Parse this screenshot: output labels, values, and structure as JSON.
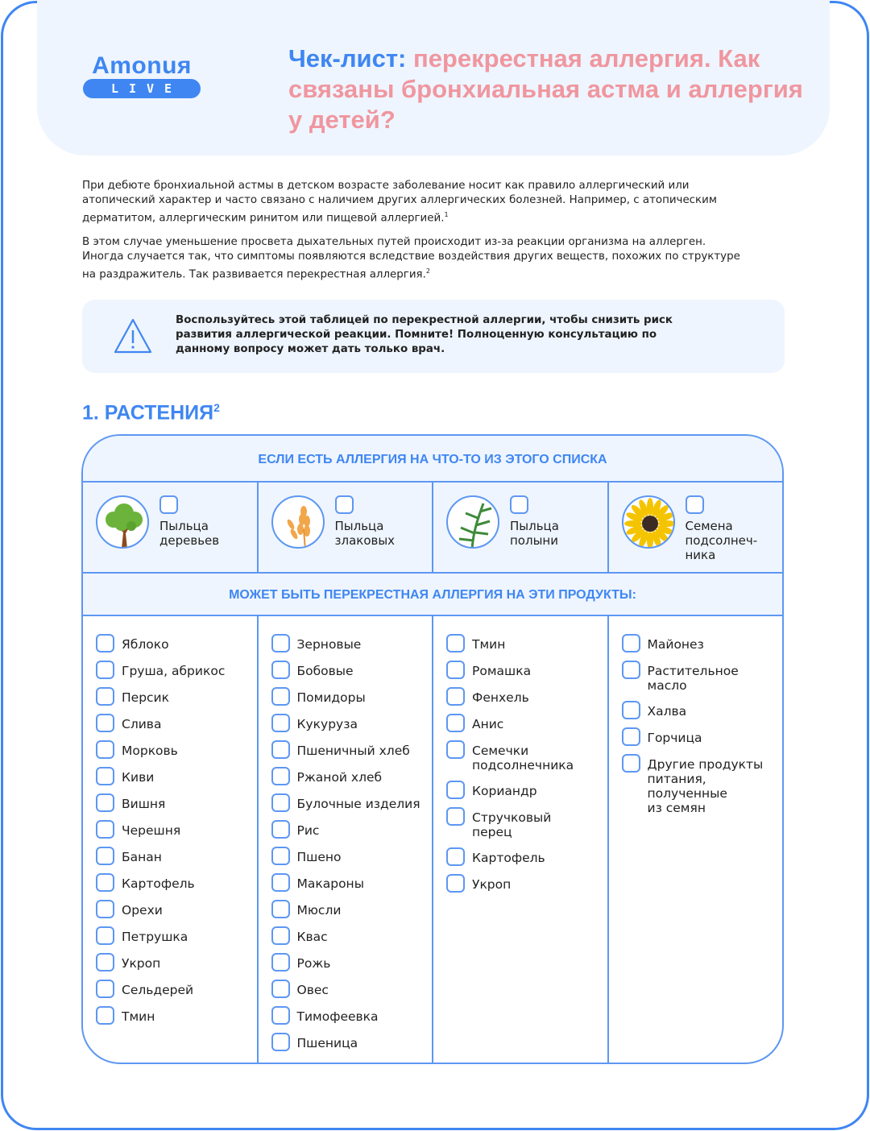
{
  "logo": {
    "name": "Amonuя",
    "sub": "LIVE"
  },
  "title": {
    "lead": "Чек-лист:",
    "rest": " перекрестная аллергия. Как связаны бронхиальная астма и аллергия у детей?"
  },
  "intro": [
    {
      "text": "При дебюте бронхиальной астмы в детском возрасте заболевание носит как правило аллергический или атопический характер и часто связано с наличием других аллергических болезней. Например, с атопическим дерматитом, аллергическим ринитом или пищевой аллергией.",
      "ref": "1"
    },
    {
      "text": "В этом случае уменьшение просвета дыхательных путей происходит из-за реакции организма на аллерген. Иногда случается так, что симптомы появляются вследствие воздействия других веществ, похожих по структуре на раздражитель. Так развивается перекрестная аллергия.",
      "ref": "2"
    }
  ],
  "note": {
    "icon": "warning-triangle-icon",
    "text": "Воспользуйтесь этой таблицей по перекрестной аллергии, чтобы снизить риск развития аллергической реакции. Помните! Полноценную консультацию по данному вопросу может дать только врач."
  },
  "section": {
    "title": "1. РАСТЕНИЯ",
    "ref": "2"
  },
  "table": {
    "header1": "ЕСЛИ ЕСТЬ АЛЛЕРГИЯ НА ЧТО-ТО ИЗ ЭТОГО СПИСКА",
    "categories": [
      {
        "label": "Пыльца\nдеревьев",
        "icon": "tree-icon"
      },
      {
        "label": "Пыльца\nзлаковых",
        "icon": "wheat-icon"
      },
      {
        "label": "Пыльца\nполыни",
        "icon": "wormwood-icon"
      },
      {
        "label": "Семена\nподсолнеч-\nника",
        "icon": "sunflower-icon"
      }
    ],
    "header2": "МОЖЕТ БЫТЬ ПЕРЕКРЕСТНАЯ АЛЛЕРГИЯ НА ЭТИ ПРОДУКТЫ:",
    "columns": [
      [
        "Яблоко",
        "Груша, абрикос",
        "Персик",
        "Слива",
        "Морковь",
        "Киви",
        "Вишня",
        "Черешня",
        "Банан",
        "Картофель",
        "Орехи",
        "Петрушка",
        "Укроп",
        "Сельдерей",
        "Тмин"
      ],
      [
        "Зерновые",
        "Бобовые",
        "Помидоры",
        "Кукуруза",
        "Пшеничный хлеб",
        "Ржаной хлеб",
        "Булочные изделия",
        "Рис",
        "Пшено",
        "Макароны",
        "Мюсли",
        "Квас",
        "Рожь",
        "Овес",
        "Тимофеевка",
        "Пшеница"
      ],
      [
        "Тмин",
        "Ромашка",
        "Фенхель",
        "Анис",
        "Семечки\nподсолнечника",
        "Кориандр",
        "Стручковый\nперец",
        "Картофель",
        "Укроп"
      ],
      [
        "Майонез",
        "Растительное\nмасло",
        "Халва",
        "Горчица",
        "Другие продукты\nпитания,\nполученные\nиз семян"
      ]
    ]
  },
  "colors": {
    "blue": "#3f86f2",
    "pink": "#f0969f",
    "panel": "#eef5fe"
  }
}
